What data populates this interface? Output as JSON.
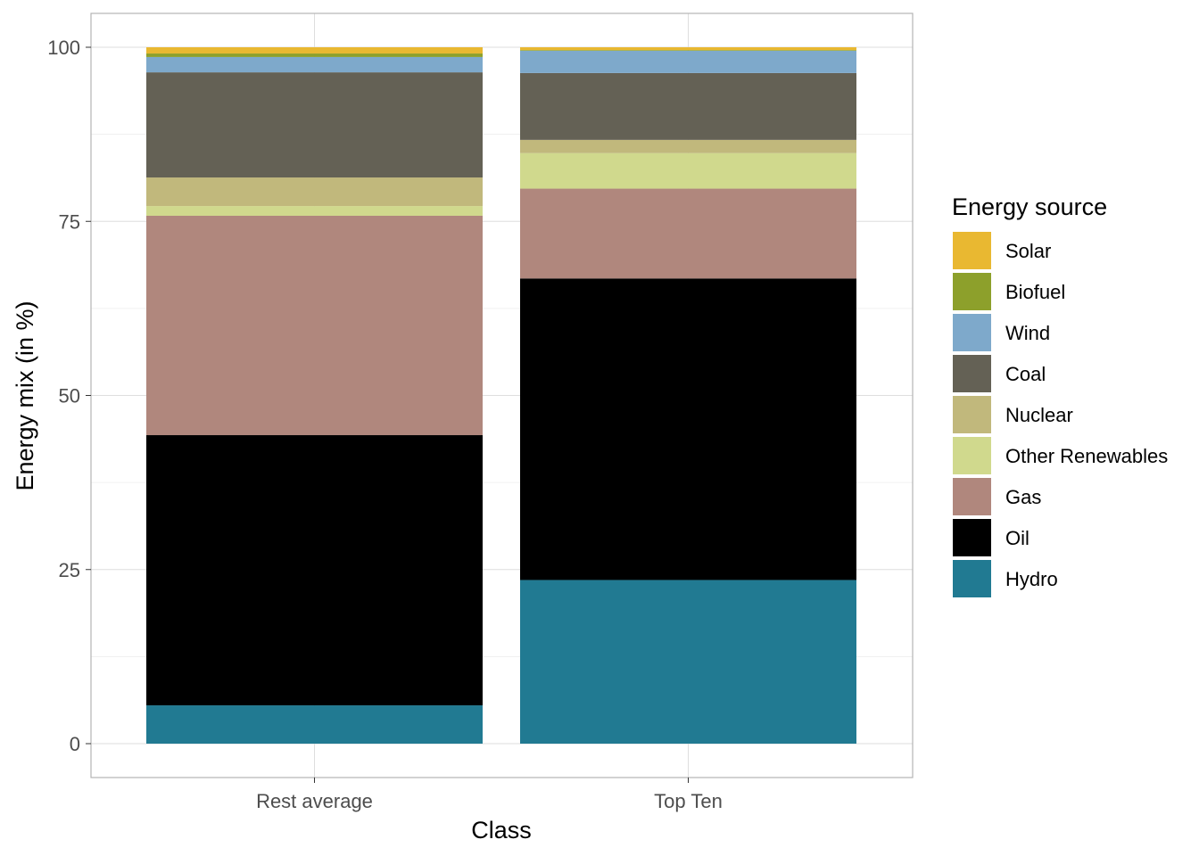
{
  "chart_data": {
    "type": "bar",
    "stacked": true,
    "xlabel": "Class",
    "ylabel": "Energy mix (in %)",
    "ylim": [
      0,
      100
    ],
    "yticks": [
      0,
      25,
      50,
      75,
      100
    ],
    "grid": true,
    "legend_position": "right",
    "legend_title": "Energy source",
    "categories": [
      "Rest average",
      "Top Ten"
    ],
    "stack_order": [
      "Hydro",
      "Oil",
      "Gas",
      "Other Renewables",
      "Nuclear",
      "Coal",
      "Wind",
      "Biofuel",
      "Solar"
    ],
    "series": [
      {
        "name": "Solar",
        "color": "#E9B831",
        "values": [
          0.9,
          0.4
        ]
      },
      {
        "name": "Biofuel",
        "color": "#8DA02B",
        "values": [
          0.5,
          0.1
        ]
      },
      {
        "name": "Wind",
        "color": "#7EA9CB",
        "values": [
          2.2,
          3.2
        ]
      },
      {
        "name": "Coal",
        "color": "#646155",
        "values": [
          15.1,
          9.6
        ]
      },
      {
        "name": "Nuclear",
        "color": "#C1B87C",
        "values": [
          4.1,
          1.9
        ]
      },
      {
        "name": "Other Renewables",
        "color": "#D0D98D",
        "values": [
          1.4,
          5.1
        ]
      },
      {
        "name": "Gas",
        "color": "#B0877D",
        "values": [
          31.5,
          12.9
        ]
      },
      {
        "name": "Oil",
        "color": "#000000",
        "values": [
          38.8,
          43.3
        ]
      },
      {
        "name": "Hydro",
        "color": "#217A92",
        "values": [
          5.5,
          23.5
        ]
      }
    ]
  }
}
